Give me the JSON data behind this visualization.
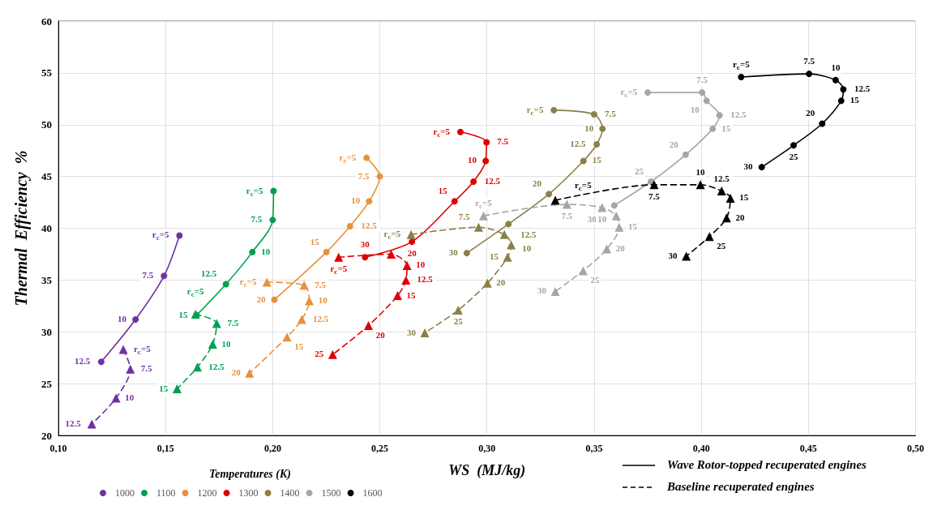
{
  "chart_data": {
    "type": "line",
    "xlabel": "WS  (MJ/kg)",
    "ylabel": "Thermal  Efficiency  %",
    "legend_title": "Temperatures (K)",
    "xlim": [
      0.1,
      0.5
    ],
    "xticks": [
      {
        "value": 0.1,
        "label": "0,10"
      },
      {
        "value": 0.15,
        "label": "0,15"
      },
      {
        "value": 0.2,
        "label": "0,20"
      },
      {
        "value": 0.25,
        "label": "0,25"
      },
      {
        "value": 0.3,
        "label": "0,30"
      },
      {
        "value": 0.35,
        "label": "0,35"
      },
      {
        "value": 0.4,
        "label": "0,40"
      },
      {
        "value": 0.45,
        "label": "0,45"
      },
      {
        "value": 0.5,
        "label": "0,50"
      }
    ],
    "ylim": [
      20,
      60
    ],
    "yticks": [
      20,
      25,
      30,
      35,
      40,
      45,
      50,
      55,
      60
    ],
    "grid": true,
    "legend": "bottom left",
    "annotations": [
      "Wave Rotor-topped recuperated engines",
      "Baseline recuperated engines",
      {
        "text": "r$_{c}$=5",
        "x": 0.1565,
        "y": 39.3
      },
      {
        "text": "7.5",
        "x": 0.1493,
        "y": 35.4
      },
      {
        "text": "10",
        "x": 0.136,
        "y": 31.2
      },
      {
        "text": "12.5",
        "x": 0.12,
        "y": 27.1
      },
      {
        "text": "r$_{c}$=5",
        "x": 0.1303,
        "y": 28.3
      },
      {
        "text": "7.5",
        "x": 0.1336,
        "y": 26.4
      },
      {
        "text": "10",
        "x": 0.1269,
        "y": 23.6
      },
      {
        "text": "12.5",
        "x": 0.1156,
        "y": 21.1
      },
      {
        "text": "r$_{c}$=5",
        "x": 0.2004,
        "y": 43.6
      },
      {
        "text": "7.5",
        "x": 0.2,
        "y": 40.8
      },
      {
        "text": "10",
        "x": 0.1905,
        "y": 37.7
      },
      {
        "text": "12.5",
        "x": 0.1782,
        "y": 34.6
      },
      {
        "text": "15",
        "x": 0.1645,
        "y": 31.6
      },
      {
        "text": "r$_{c}$=5",
        "x": 0.164,
        "y": 31.7
      },
      {
        "text": "7.5",
        "x": 0.1739,
        "y": 30.8
      },
      {
        "text": "10",
        "x": 0.172,
        "y": 28.8
      },
      {
        "text": "12.5",
        "x": 0.1649,
        "y": 26.6
      },
      {
        "text": "15",
        "x": 0.1554,
        "y": 24.5
      },
      {
        "text": "r$_{c}$=5",
        "x": 0.2438,
        "y": 46.8
      },
      {
        "text": "7.5",
        "x": 0.25,
        "y": 45.0
      },
      {
        "text": "10",
        "x": 0.245,
        "y": 42.6
      },
      {
        "text": "12.5",
        "x": 0.2361,
        "y": 40.2
      },
      {
        "text": "15",
        "x": 0.2251,
        "y": 37.7
      },
      {
        "text": "20",
        "x": 0.2008,
        "y": 33.1
      },
      {
        "text": "r$_{c}$=5",
        "x": 0.1973,
        "y": 34.8
      },
      {
        "text": "7.5",
        "x": 0.2147,
        "y": 34.5
      },
      {
        "text": "10",
        "x": 0.2171,
        "y": 33.0
      },
      {
        "text": "12.5",
        "x": 0.2136,
        "y": 31.2
      },
      {
        "text": "15",
        "x": 0.2067,
        "y": 29.5
      },
      {
        "text": "20",
        "x": 0.1892,
        "y": 26.0
      },
      {
        "text": "r$_{c}$=5",
        "x": 0.2876,
        "y": 49.3
      },
      {
        "text": "7.5",
        "x": 0.2998,
        "y": 48.3
      },
      {
        "text": "10",
        "x": 0.2994,
        "y": 46.5
      },
      {
        "text": "12.5",
        "x": 0.2937,
        "y": 44.5
      },
      {
        "text": "15",
        "x": 0.2849,
        "y": 42.6
      },
      {
        "text": "20",
        "x": 0.265,
        "y": 38.7
      },
      {
        "text": "30",
        "x": 0.2431,
        "y": 37.2
      },
      {
        "text": "r$_{c}$=5",
        "x": 0.2308,
        "y": 37.2
      },
      {
        "text": "10",
        "x": 0.2627,
        "y": 36.4
      },
      {
        "text": "12.5",
        "x": 0.2622,
        "y": 35.0
      },
      {
        "text": "15",
        "x": 0.2583,
        "y": 33.5
      },
      {
        "text": "20",
        "x": 0.2447,
        "y": 30.6
      },
      {
        "text": "25",
        "x": 0.228,
        "y": 27.8
      },
      {
        "text": "r$_{c}$=5",
        "x": 0.3312,
        "y": 51.4
      },
      {
        "text": "7.5",
        "x": 0.35,
        "y": 51.0
      },
      {
        "text": "10",
        "x": 0.3539,
        "y": 49.6
      },
      {
        "text": "12.5",
        "x": 0.3512,
        "y": 48.1
      },
      {
        "text": "15",
        "x": 0.345,
        "y": 46.5
      },
      {
        "text": "20",
        "x": 0.3289,
        "y": 43.3
      },
      {
        "text": "30",
        "x": 0.2906,
        "y": 37.6
      },
      {
        "text": "r$_{c}$=5",
        "x": 0.2646,
        "y": 39.4
      },
      {
        "text": "7.5",
        "x": 0.2961,
        "y": 40.1
      },
      {
        "text": "10",
        "x": 0.3081,
        "y": 39.4
      },
      {
        "text": "12.5",
        "x": 0.3113,
        "y": 38.4
      },
      {
        "text": "15",
        "x": 0.3096,
        "y": 37.2
      },
      {
        "text": "20",
        "x": 0.3002,
        "y": 34.7
      },
      {
        "text": "25",
        "x": 0.2866,
        "y": 32.1
      },
      {
        "text": "30",
        "x": 0.271,
        "y": 29.9
      },
      {
        "text": "r$_{c}$=5",
        "x": 0.375,
        "y": 53.1
      },
      {
        "text": "7.5",
        "x": 0.4004,
        "y": 53.1
      },
      {
        "text": "10",
        "x": 0.4025,
        "y": 52.3
      },
      {
        "text": "12.5",
        "x": 0.4085,
        "y": 50.9
      },
      {
        "text": "15",
        "x": 0.4053,
        "y": 49.6
      },
      {
        "text": "20",
        "x": 0.3927,
        "y": 47.1
      },
      {
        "text": "25",
        "x": 0.3765,
        "y": 44.5
      },
      {
        "text": "30",
        "x": 0.3594,
        "y": 42.2
      },
      {
        "text": "r$_{c}$=5",
        "x": 0.2984,
        "y": 41.2
      },
      {
        "text": "7.5",
        "x": 0.3373,
        "y": 42.3
      },
      {
        "text": "10",
        "x": 0.3537,
        "y": 42.0
      },
      {
        "text": "15",
        "x": 0.3617,
        "y": 40.1
      },
      {
        "text": "20",
        "x": 0.3559,
        "y": 38.0
      },
      {
        "text": "25",
        "x": 0.3449,
        "y": 35.9
      },
      {
        "text": "30",
        "x": 0.3319,
        "y": 33.9
      },
      {
        "text": "r$_{c}$=5",
        "x": 0.4186,
        "y": 54.6
      },
      {
        "text": "7.5",
        "x": 0.4503,
        "y": 54.9
      },
      {
        "text": "10",
        "x": 0.4627,
        "y": 54.3
      },
      {
        "text": "12.5",
        "x": 0.4663,
        "y": 53.4
      },
      {
        "text": "15",
        "x": 0.4653,
        "y": 52.3
      },
      {
        "text": "20",
        "x": 0.4564,
        "y": 50.1
      },
      {
        "text": "25",
        "x": 0.4431,
        "y": 48.0
      },
      {
        "text": "30",
        "x": 0.4282,
        "y": 45.9
      },
      {
        "text": "r$_{c}$=5",
        "x": 0.3319,
        "y": 42.7
      },
      {
        "text": "7.5",
        "x": 0.378,
        "y": 44.2
      },
      {
        "text": "10",
        "x": 0.3996,
        "y": 44.2
      },
      {
        "text": "12.5",
        "x": 0.4095,
        "y": 43.6
      },
      {
        "text": "15",
        "x": 0.4136,
        "y": 42.9
      },
      {
        "text": "20",
        "x": 0.4118,
        "y": 41.0
      },
      {
        "text": "25",
        "x": 0.4038,
        "y": 39.2
      },
      {
        "text": "30",
        "x": 0.393,
        "y": 37.3
      }
    ],
    "series": [
      {
        "name": "1000",
        "color": "#7030a0",
        "marker": "circle",
        "line_style": "solid",
        "x": [
          0.1565,
          0.1493,
          0.136,
          0.12
        ],
        "values": [
          39.3,
          35.4,
          31.2,
          27.1
        ]
      },
      {
        "color": "#7030a0",
        "marker": "triangle",
        "line_style": "dashed",
        "x": [
          0.1303,
          0.1336,
          0.1269,
          0.1156
        ],
        "values": [
          28.3,
          26.4,
          23.6,
          21.1
        ]
      },
      {
        "name": "1100",
        "color": "#00a050",
        "marker": "circle",
        "line_style": "solid",
        "x": [
          0.2004,
          0.2,
          0.1905,
          0.1782,
          0.1645
        ],
        "values": [
          43.6,
          40.8,
          37.7,
          34.6,
          31.6
        ]
      },
      {
        "color": "#00a050",
        "marker": "triangle",
        "line_style": "dashed",
        "x": [
          0.164,
          0.1739,
          0.172,
          0.1649,
          0.1554
        ],
        "values": [
          31.7,
          30.8,
          28.8,
          26.6,
          24.5
        ]
      },
      {
        "name": "1200",
        "color": "#e8913a",
        "marker": "circle",
        "line_style": "solid",
        "x": [
          0.2438,
          0.25,
          0.245,
          0.2361,
          0.2251,
          0.2008
        ],
        "values": [
          46.8,
          45.0,
          42.6,
          40.2,
          37.7,
          33.1
        ]
      },
      {
        "color": "#e8913a",
        "marker": "triangle",
        "line_style": "dashed",
        "x": [
          0.1973,
          0.2147,
          0.2171,
          0.2136,
          0.2067,
          0.1892
        ],
        "values": [
          34.8,
          34.5,
          33.0,
          31.2,
          29.5,
          26.0
        ]
      },
      {
        "name": "1300",
        "color": "#e00000",
        "marker": "circle",
        "line_style": "solid",
        "x": [
          0.2876,
          0.2998,
          0.2994,
          0.2937,
          0.2849,
          0.265,
          0.2431
        ],
        "values": [
          49.3,
          48.3,
          46.5,
          44.5,
          42.6,
          38.7,
          37.2
        ]
      },
      {
        "color": "#e00000",
        "marker": "triangle",
        "line_style": "dashed",
        "x": [
          0.2308,
          0.2553,
          0.2627,
          0.2622,
          0.2583,
          0.2447,
          0.228
        ],
        "values": [
          37.2,
          37.5,
          36.4,
          35.0,
          33.5,
          30.6,
          27.8
        ]
      },
      {
        "name": "1400",
        "color": "#8a8048",
        "marker": "circle",
        "line_style": "solid",
        "x": [
          0.3312,
          0.35,
          0.3539,
          0.3512,
          0.345,
          0.3289,
          0.31,
          0.2906
        ],
        "values": [
          51.4,
          51.0,
          49.6,
          48.1,
          46.5,
          43.3,
          40.4,
          37.6
        ]
      },
      {
        "color": "#8a8048",
        "marker": "triangle",
        "line_style": "dashed",
        "x": [
          0.2646,
          0.2961,
          0.3081,
          0.3113,
          0.3096,
          0.3002,
          0.2866,
          0.271
        ],
        "values": [
          39.4,
          40.1,
          39.4,
          38.4,
          37.2,
          34.7,
          32.1,
          29.9
        ]
      },
      {
        "name": "1500",
        "color": "#a6a6a6",
        "marker": "circle",
        "line_style": "solid",
        "x": [
          0.375,
          0.4004,
          0.4025,
          0.4085,
          0.4053,
          0.3927,
          0.3765,
          0.3594
        ],
        "values": [
          53.1,
          53.1,
          52.3,
          50.9,
          49.6,
          47.1,
          44.5,
          42.2
        ]
      },
      {
        "color": "#a6a6a6",
        "marker": "triangle",
        "line_style": "dashed",
        "x": [
          0.2984,
          0.3373,
          0.3537,
          0.3603,
          0.3617,
          0.3559,
          0.3449,
          0.3319
        ],
        "values": [
          41.2,
          42.3,
          42.0,
          41.2,
          40.1,
          38.0,
          35.9,
          33.9
        ]
      },
      {
        "name": "1600",
        "color": "#000000",
        "marker": "circle",
        "line_style": "solid",
        "x": [
          0.4186,
          0.4503,
          0.4627,
          0.4663,
          0.4653,
          0.4564,
          0.4431,
          0.4282
        ],
        "values": [
          54.6,
          54.9,
          54.3,
          53.4,
          52.3,
          50.1,
          48.0,
          45.9
        ]
      },
      {
        "color": "#000000",
        "marker": "triangle",
        "line_style": "dashed",
        "x": [
          0.3319,
          0.378,
          0.3996,
          0.4095,
          0.4136,
          0.4118,
          0.4038,
          0.393
        ],
        "values": [
          42.7,
          44.2,
          44.2,
          43.6,
          42.9,
          41.0,
          39.2,
          37.3
        ]
      }
    ]
  }
}
